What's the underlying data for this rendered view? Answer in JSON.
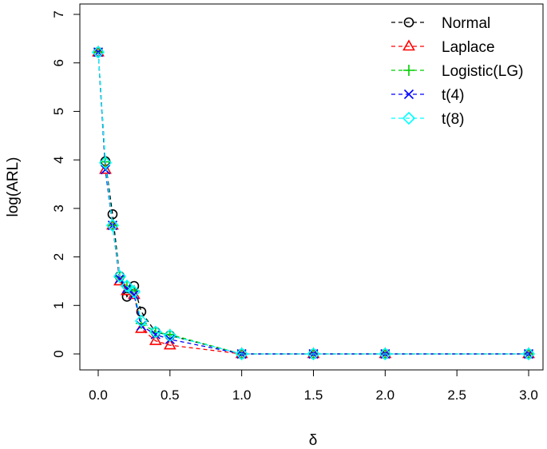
{
  "chart_data": {
    "type": "line",
    "title": "",
    "xlabel": "δ",
    "ylabel": "log(ARL)",
    "xlim": [
      0,
      3
    ],
    "ylim": [
      0,
      7
    ],
    "x_ticks": [
      "0.0",
      "0.5",
      "1.0",
      "1.5",
      "2.0",
      "2.5",
      "3.0"
    ],
    "y_ticks": [
      "0",
      "1",
      "2",
      "3",
      "4",
      "5",
      "6",
      "7"
    ],
    "legend_position": "top-right",
    "x": [
      0,
      0.05,
      0.1,
      0.15,
      0.2,
      0.25,
      0.3,
      0.4,
      0.5,
      1.0,
      1.5,
      2.0,
      3.0
    ],
    "series": [
      {
        "name": "Normal",
        "color": "#000000",
        "marker": "circle",
        "values": [
          6.22,
          3.97,
          2.88,
          1.6,
          1.18,
          1.4,
          0.87,
          0.45,
          0.38,
          0,
          0,
          0,
          0
        ]
      },
      {
        "name": "Laplace",
        "color": "#ff0000",
        "marker": "triangle",
        "values": [
          6.22,
          3.8,
          2.65,
          1.5,
          1.3,
          1.22,
          0.52,
          0.27,
          0.18,
          0,
          0,
          0,
          0
        ]
      },
      {
        "name": "Logistic(LG)",
        "color": "#00cd00",
        "marker": "plus",
        "values": [
          6.22,
          3.96,
          2.65,
          1.58,
          1.4,
          1.3,
          0.63,
          0.45,
          0.4,
          0,
          0,
          0,
          0
        ]
      },
      {
        "name": "t(4)",
        "color": "#0000ff",
        "marker": "cross",
        "values": [
          6.22,
          3.8,
          2.65,
          1.55,
          1.35,
          1.22,
          0.58,
          0.4,
          0.3,
          0,
          0,
          0,
          0
        ]
      },
      {
        "name": "t(8)",
        "color": "#00ffff",
        "marker": "diamond",
        "values": [
          6.22,
          3.94,
          2.65,
          1.6,
          1.4,
          1.28,
          0.68,
          0.45,
          0.38,
          0,
          0,
          0,
          0
        ]
      }
    ]
  }
}
